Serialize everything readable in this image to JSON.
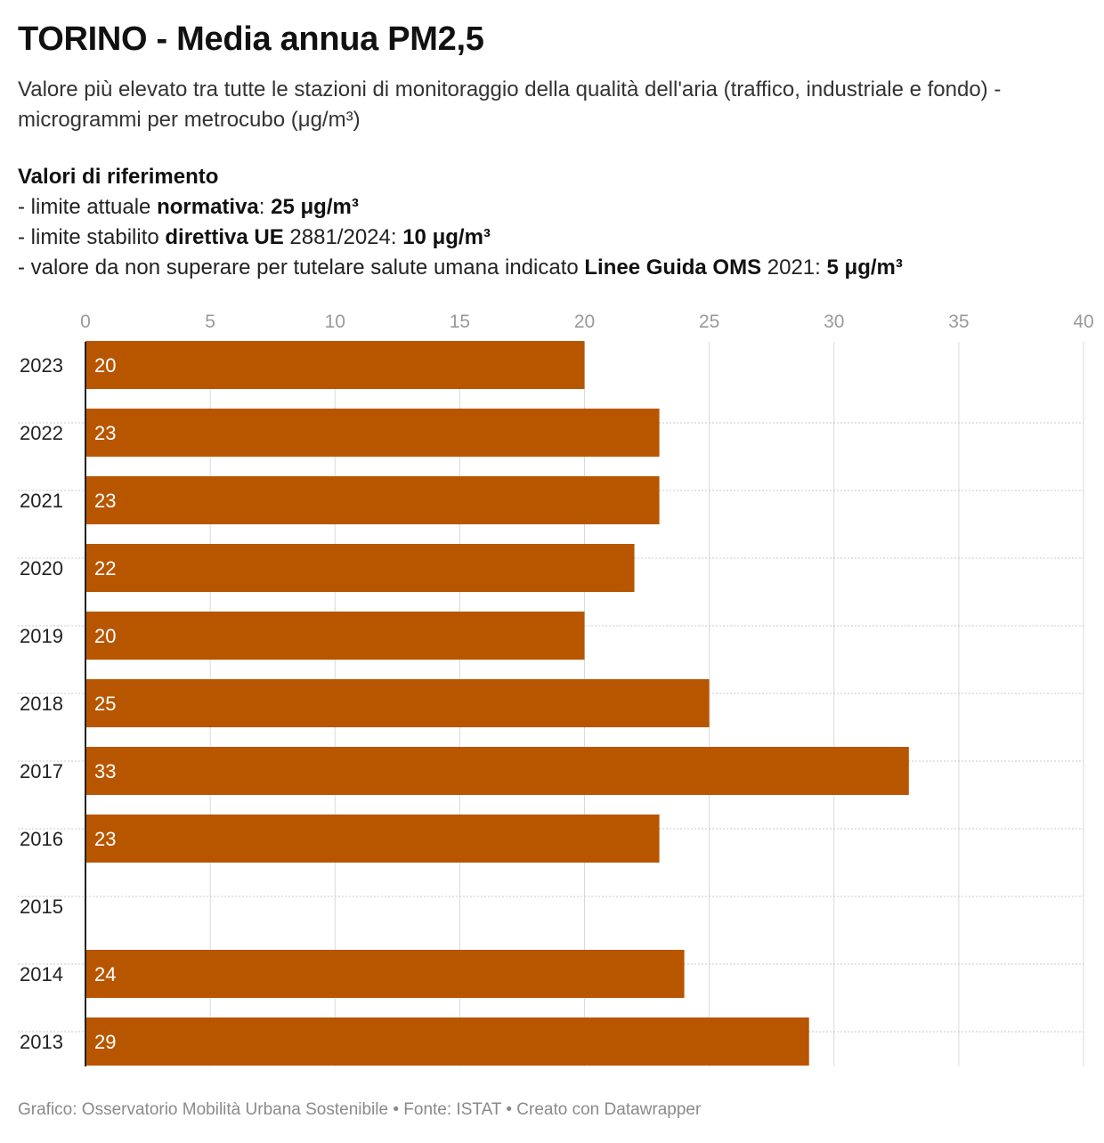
{
  "header": {
    "title": "TORINO - Media annua PM2,5",
    "subtitle": "Valore più elevato tra tutte le stazioni di monitoraggio della qualità dell'aria (traffico, industriale e fondo) - microgrammi per metrocubo (μg/m³)"
  },
  "reference": {
    "title": "Valori di riferimento",
    "line1": {
      "prefix": "- limite attuale ",
      "strong": "normativa",
      "mid": ": ",
      "value": "25 μg/m³"
    },
    "line2": {
      "prefix": "- limite stabilito ",
      "strong": "direttiva UE",
      "mid": " 2881/2024: ",
      "value": "10 μg/m³"
    },
    "line3": {
      "prefix": "- valore da non superare per tutelare salute umana indicato ",
      "strong": "Linee Guida OMS",
      "mid": " 2021: ",
      "value": "5 μg/m³"
    }
  },
  "footer": "Grafico: Osservatorio Mobilità Urbana Sostenibile • Fonte: ISTAT • Creato con Datawrapper",
  "colors": {
    "bar": "#b85600",
    "grid": "#d9d9d9",
    "axis_text": "#9a9a9a",
    "baseline": "#222222"
  },
  "chart_data": {
    "type": "bar",
    "orientation": "horizontal",
    "categories": [
      "2023",
      "2022",
      "2021",
      "2020",
      "2019",
      "2018",
      "2017",
      "2016",
      "2015",
      "2014",
      "2013"
    ],
    "values": [
      20,
      23,
      23,
      22,
      20,
      25,
      33,
      23,
      null,
      24,
      29
    ],
    "xlim": [
      0,
      40
    ],
    "xticks": [
      0,
      5,
      10,
      15,
      20,
      25,
      30,
      35,
      40
    ],
    "grid": true,
    "axis_position": "top"
  }
}
